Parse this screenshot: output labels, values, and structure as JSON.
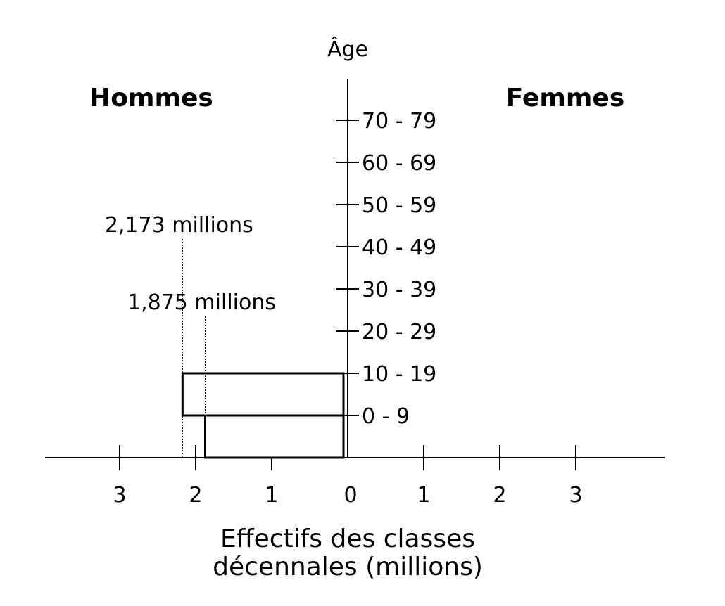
{
  "chart_data": {
    "type": "bar",
    "chart_kind": "age pyramid",
    "y_axis_label": "Âge",
    "left_group_label": "Hommes",
    "right_group_label": "Femmes",
    "categories": [
      "0 - 9",
      "10 - 19",
      "20 - 29",
      "30 - 39",
      "40 - 49",
      "50 - 59",
      "60 - 69",
      "70 - 79"
    ],
    "series": [
      {
        "values": [
          1.875,
          2.173,
          null,
          null,
          null,
          null,
          null,
          null
        ]
      }
    ],
    "x_ticks_left": [
      "3",
      "2",
      "1"
    ],
    "x_tick_zero": "0",
    "x_ticks_right": [
      "1",
      "2",
      "3"
    ],
    "xlim": [
      -4,
      4
    ],
    "annotations": [
      "2,173 millions",
      "1,875 millions"
    ],
    "xlabel_lines": [
      "Effectifs des classes",
      "décennales (millions)"
    ],
    "grid": false,
    "bar_outline_color": "#000000",
    "bar_fill_color": "#ffffff"
  }
}
